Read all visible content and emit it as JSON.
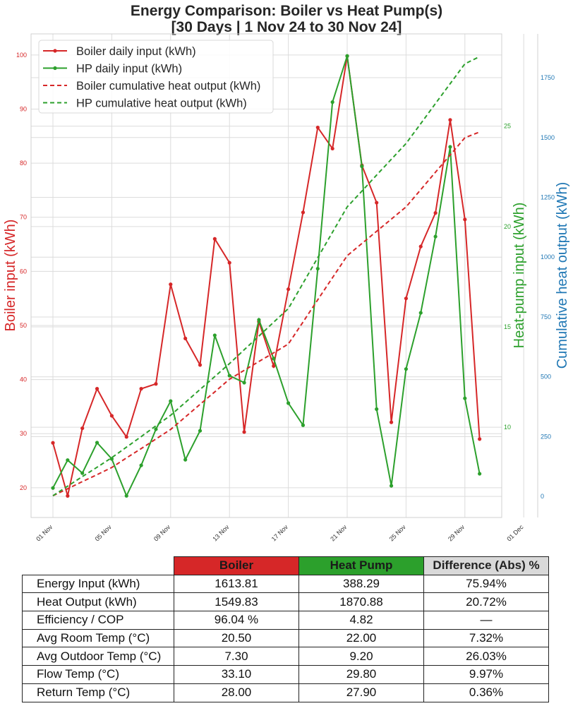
{
  "chart_data": {
    "type": "line",
    "title": "Energy Comparison: Boiler vs Heat Pump(s)",
    "subtitle": "[30 Days | 1 Nov 24 to 30 Nov 24]",
    "x": [
      "01 Nov",
      "02 Nov",
      "03 Nov",
      "04 Nov",
      "05 Nov",
      "06 Nov",
      "07 Nov",
      "08 Nov",
      "09 Nov",
      "10 Nov",
      "11 Nov",
      "12 Nov",
      "13 Nov",
      "14 Nov",
      "15 Nov",
      "16 Nov",
      "17 Nov",
      "18 Nov",
      "19 Nov",
      "20 Nov",
      "21 Nov",
      "22 Nov",
      "23 Nov",
      "24 Nov",
      "25 Nov",
      "26 Nov",
      "27 Nov",
      "28 Nov",
      "29 Nov",
      "30 Nov"
    ],
    "xticks": [
      "01 Nov",
      "05 Nov",
      "09 Nov",
      "13 Nov",
      "17 Nov",
      "21 Nov",
      "25 Nov",
      "29 Nov",
      "01 Dec"
    ],
    "axes": {
      "left": {
        "label": "Boiler input (kWh)",
        "color": "#d62728",
        "ylim": [
          14.5,
          103.9
        ],
        "ticks": [
          20,
          30,
          40,
          50,
          60,
          70,
          80,
          90,
          100
        ]
      },
      "right1": {
        "label": "Heat-pump input (kWh)",
        "color": "#2ca02c",
        "ylim": [
          5.5,
          29.6
        ],
        "ticks": [
          10,
          15,
          20,
          25
        ]
      },
      "right2": {
        "label": "Cumulative heat output (kWh)",
        "color": "#1f77b4",
        "ylim": [
          -88,
          1933
        ],
        "ticks": [
          0,
          250,
          500,
          750,
          1000,
          1250,
          1500,
          1750
        ]
      }
    },
    "grid": true,
    "legend_position": "top-left",
    "series": [
      {
        "name": "Boiler daily input (kWh)",
        "axis": "left",
        "color": "#d62728",
        "style": "solid-marker",
        "values": [
          28.3,
          18.5,
          31.0,
          38.3,
          33.3,
          29.4,
          38.3,
          39.2,
          57.6,
          47.6,
          42.7,
          66.0,
          61.6,
          30.3,
          50.7,
          42.5,
          56.7,
          70.9,
          86.6,
          82.7,
          99.8,
          79.6,
          72.7,
          32.1,
          55.0,
          64.6,
          70.8,
          88.0,
          69.6,
          29.0
        ]
      },
      {
        "name": "HP daily input (kWh)",
        "axis": "right1",
        "color": "#2ca02c",
        "style": "solid-marker",
        "values": [
          6.97,
          8.36,
          7.71,
          9.23,
          8.42,
          6.58,
          8.1,
          9.9,
          11.3,
          8.38,
          9.82,
          14.58,
          12.57,
          12.22,
          15.35,
          13.42,
          11.2,
          10.1,
          17.9,
          26.2,
          28.5,
          23.0,
          10.9,
          7.08,
          12.9,
          15.7,
          19.5,
          23.97,
          11.44,
          7.68
        ]
      },
      {
        "name": "Boiler cumulative heat output (kWh)",
        "axis": "right2",
        "color": "#d62728",
        "style": "dashed",
        "values": [
          3,
          32,
          62,
          91,
          121,
          161,
          200,
          240,
          280,
          332,
          385,
          437,
          490,
          527,
          564,
          600,
          637,
          729,
          822,
          914,
          1006,
          1057,
          1108,
          1159,
          1210,
          1282,
          1355,
          1427,
          1499,
          1523
        ]
      },
      {
        "name": "HP cumulative heat output (kWh)",
        "axis": "right2",
        "color": "#2ca02c",
        "style": "dashed",
        "values": [
          3,
          43,
          83,
          122,
          162,
          206,
          250,
          295,
          339,
          393,
          447,
          501,
          555,
          613,
          670,
          728,
          785,
          891,
          998,
          1104,
          1210,
          1276,
          1343,
          1409,
          1475,
          1558,
          1642,
          1725,
          1808,
          1838
        ]
      }
    ]
  },
  "table": {
    "headers": [
      "Boiler",
      "Heat Pump",
      "Difference (Abs) %"
    ],
    "header_colors": [
      "#d62728",
      "#2ca02c",
      "#d9d9d9"
    ],
    "rows": [
      [
        "Energy Input (kWh)",
        "1613.81",
        "388.29",
        "75.94%"
      ],
      [
        "Heat Output (kWh)",
        "1549.83",
        "1870.88",
        "20.72%"
      ],
      [
        "Efficiency / COP",
        "96.04 %",
        "4.82",
        "—"
      ],
      [
        "Avg Room Temp (°C)",
        "20.50",
        "22.00",
        "7.32%"
      ],
      [
        "Avg Outdoor Temp (°C)",
        "7.30",
        "9.20",
        "26.03%"
      ],
      [
        "Flow Temp (°C)",
        "33.10",
        "29.80",
        "9.97%"
      ],
      [
        "Return Temp (°C)",
        "28.00",
        "27.90",
        "0.36%"
      ]
    ]
  }
}
